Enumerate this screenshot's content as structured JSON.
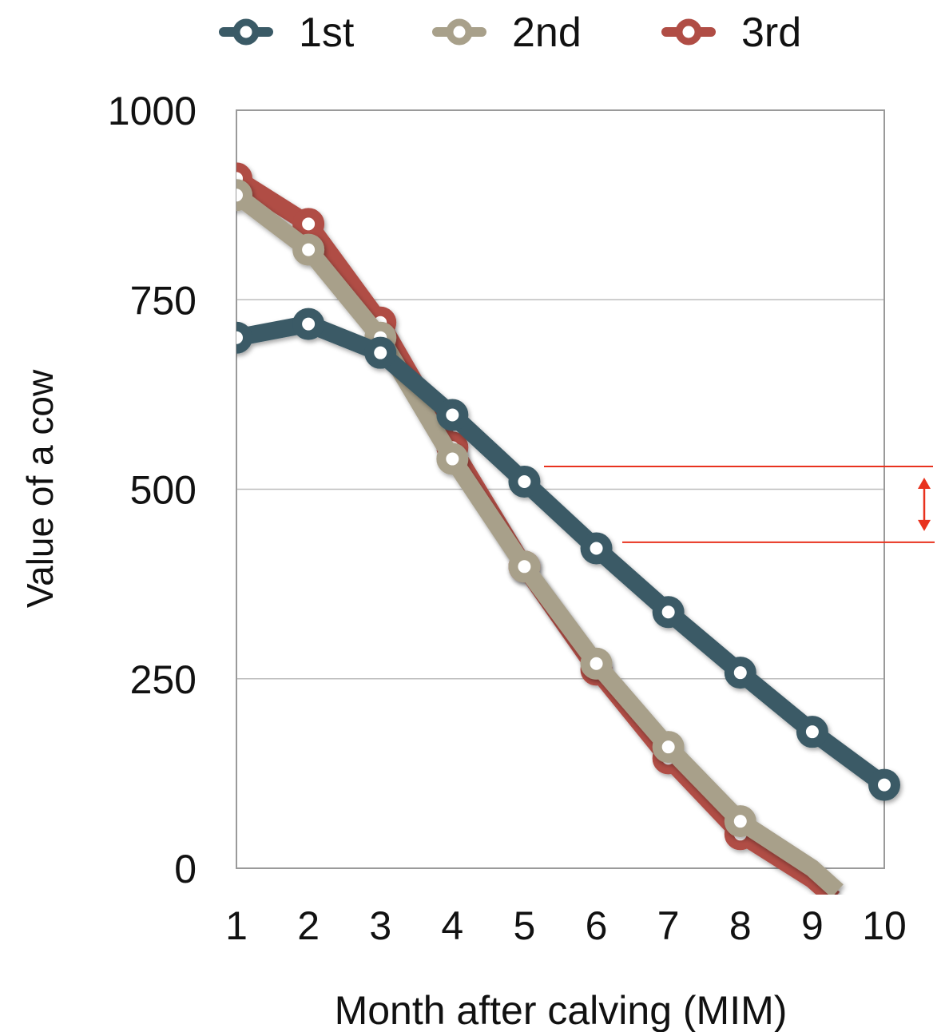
{
  "chart_data": {
    "type": "line",
    "xlabel": "Month after calving (MIM)",
    "ylabel": "Value of a cow",
    "categories": [
      "1",
      "2",
      "3",
      "4",
      "5",
      "6",
      "7",
      "8",
      "9",
      "10"
    ],
    "x": [
      1,
      2,
      3,
      4,
      5,
      6,
      7,
      8,
      9,
      10
    ],
    "xlim": [
      1,
      10
    ],
    "ylim": [
      0,
      1000
    ],
    "yticks": [
      0,
      250,
      500,
      750,
      1000
    ],
    "ytick_labels": [
      "0",
      "250",
      "500",
      "750",
      "1000"
    ],
    "grid": "horizontal",
    "legend_position": "top",
    "series": [
      {
        "name": "1st",
        "color": "#3a5a66",
        "x": [
          1,
          2,
          3,
          4,
          5,
          6,
          7,
          8,
          9,
          10
        ],
        "values": [
          700,
          718,
          680,
          598,
          510,
          422,
          338,
          258,
          180,
          110
        ]
      },
      {
        "name": "2nd",
        "color": "#a8a08a",
        "x": [
          1,
          2,
          3,
          4,
          5,
          6,
          7,
          8,
          9,
          9.35
        ],
        "values": [
          888,
          816,
          700,
          540,
          398,
          270,
          160,
          62,
          0,
          -30
        ],
        "marker_count": 8
      },
      {
        "name": "3rd",
        "color": "#b04d45",
        "x": [
          1,
          2,
          3,
          4,
          5,
          6,
          7,
          8,
          9,
          9.3
        ],
        "values": [
          910,
          850,
          720,
          555,
          398,
          262,
          145,
          45,
          -15,
          -40
        ],
        "marker_count": 8
      }
    ],
    "annotation": {
      "type": "difference-bracket",
      "color": "#e8321e",
      "from_value": 530,
      "to_value": 430
    }
  }
}
